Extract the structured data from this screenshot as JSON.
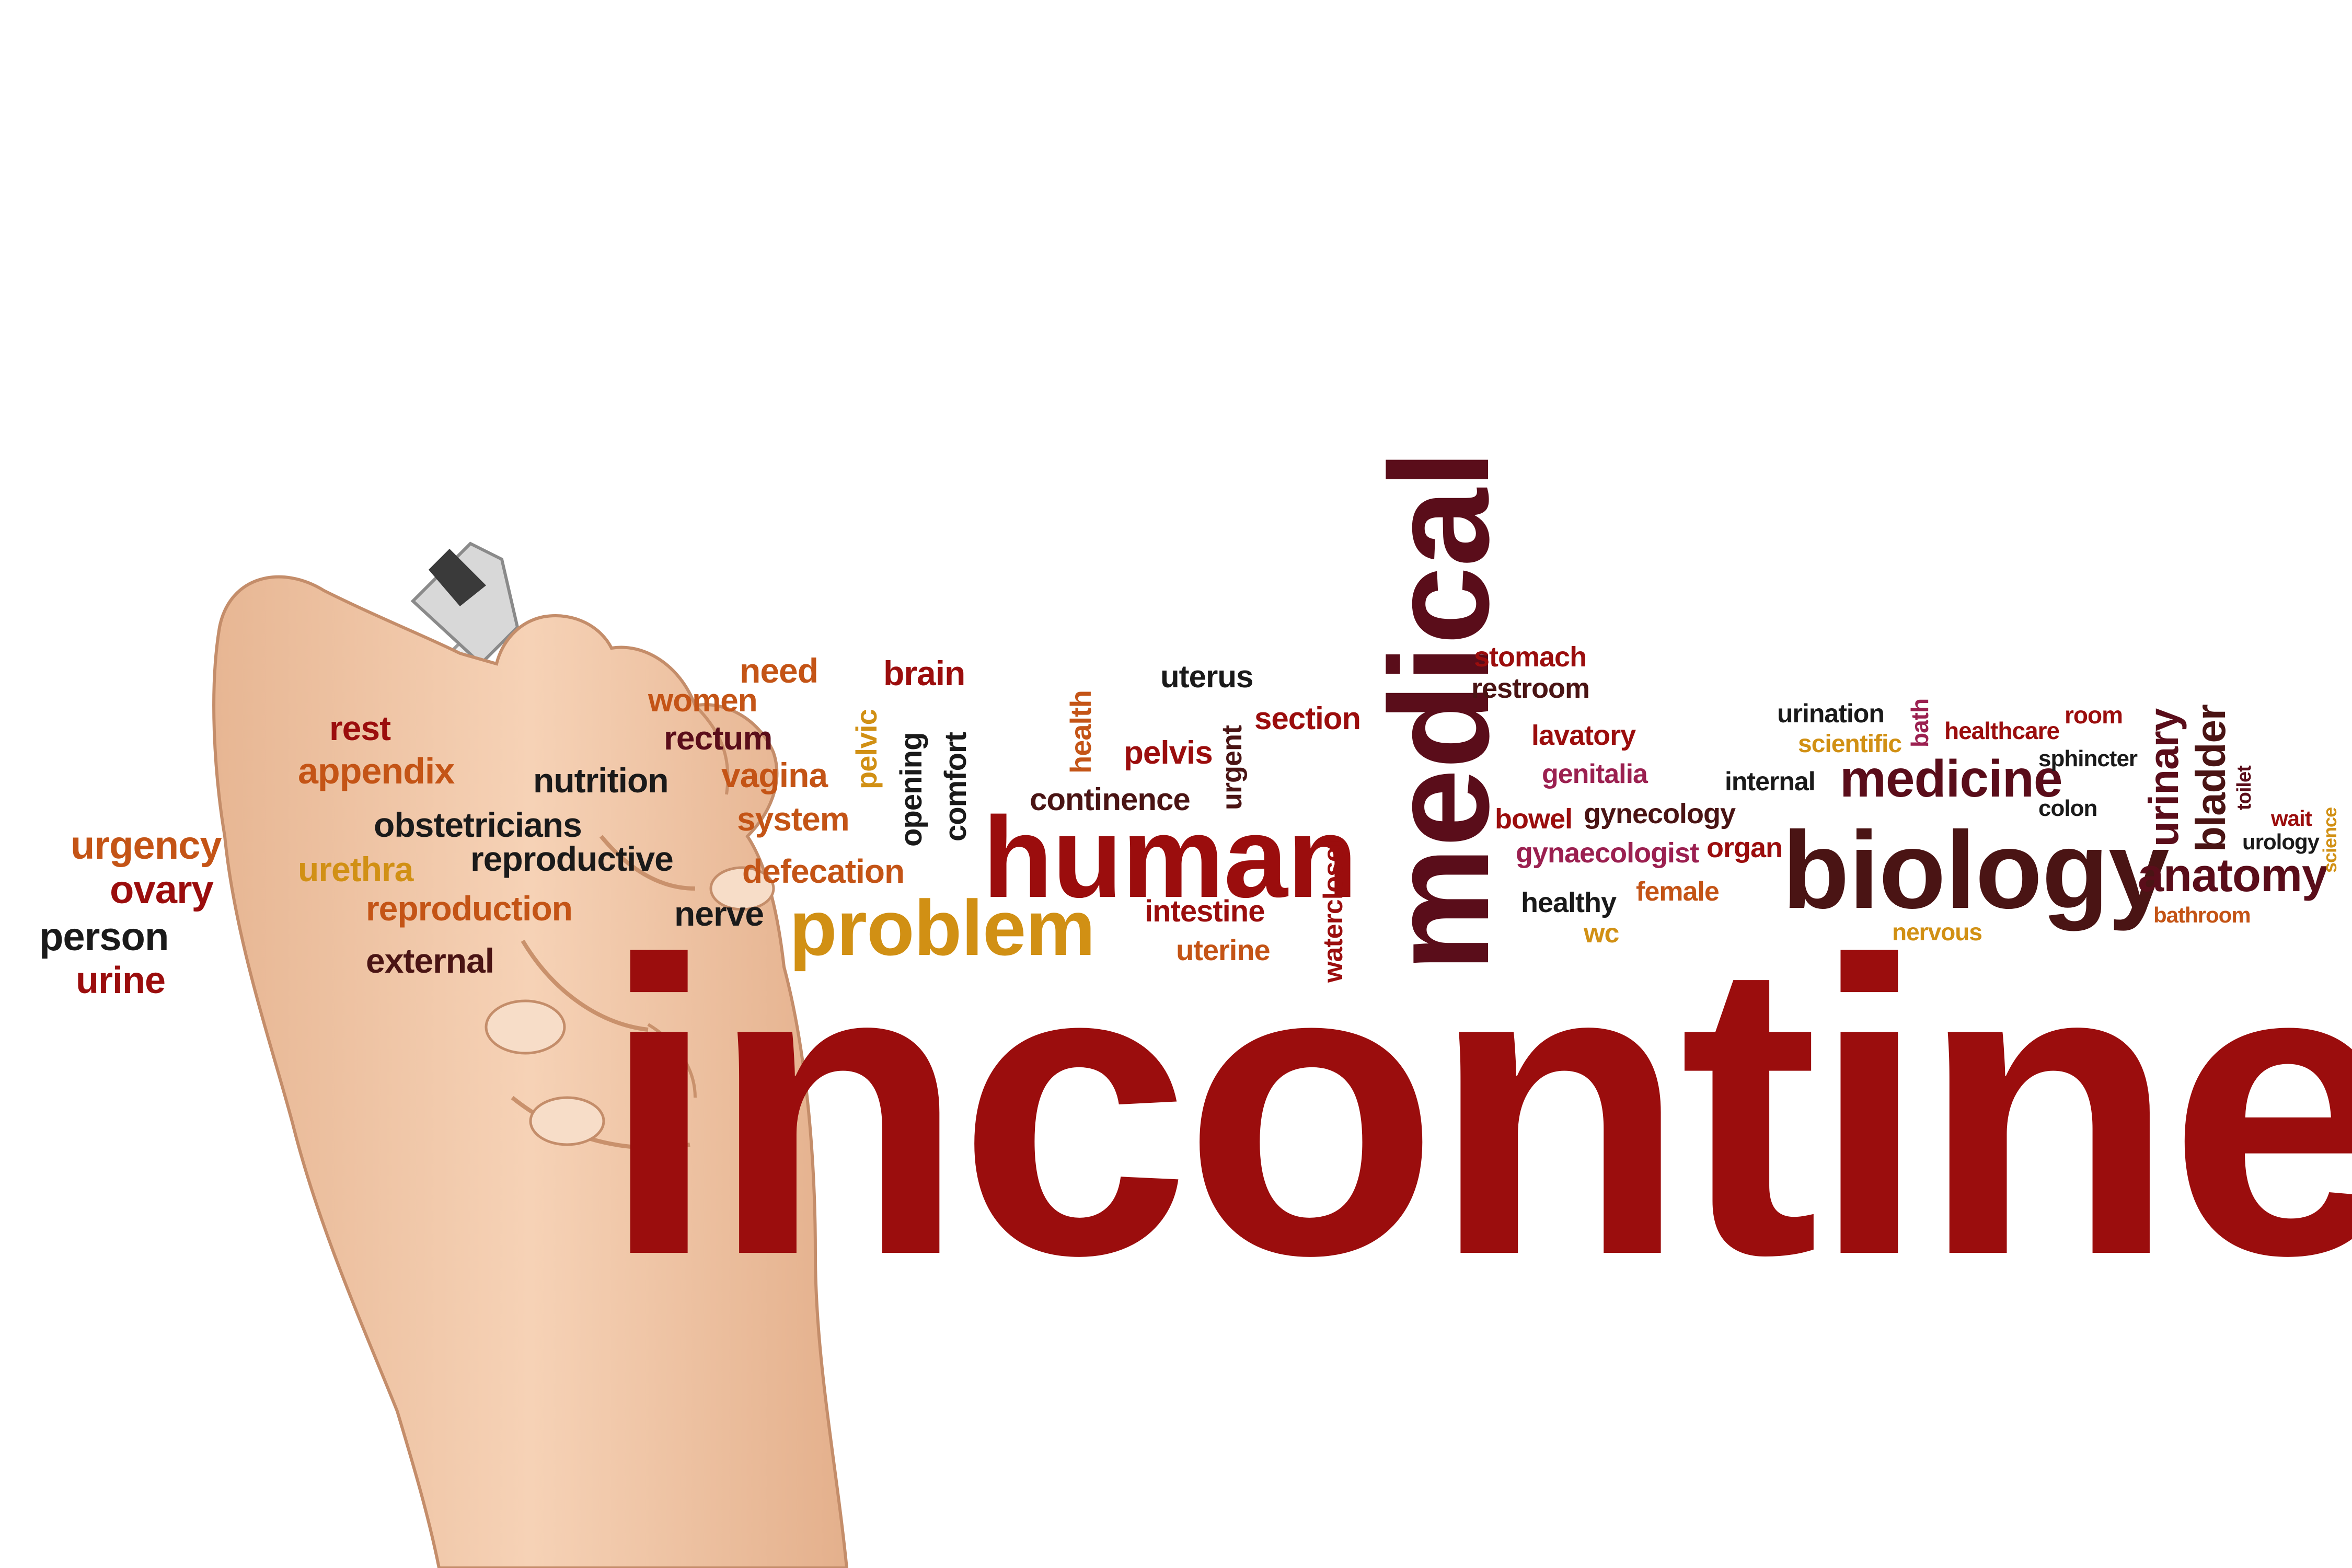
{
  "palette": {
    "dark_red": "#9b0d0d",
    "maroon": "#5a0d1a",
    "brown": "#4a1414",
    "orange": "#c45416",
    "amber": "#d19014",
    "black": "#1a1a1a",
    "skin": "#f1c7a6"
  },
  "hero_word": "incontinence",
  "words": {
    "medical": "medical",
    "human": "human",
    "biology": "biology",
    "problem": "problem",
    "medicine": "medicine",
    "anatomy": "anatomy",
    "urinary": "urinary",
    "bladder": "bladder",
    "need": "need",
    "brain": "brain",
    "women": "women",
    "rectum": "rectum",
    "rest": "rest",
    "appendix": "appendix",
    "nutrition": "nutrition",
    "vagina": "vagina",
    "pelvic": "pelvic",
    "opening": "opening",
    "comfort": "comfort",
    "health": "health",
    "uterus": "uterus",
    "pelvis": "pelvis",
    "urgent": "urgent",
    "section": "section",
    "continence": "continence",
    "obstetricians": "obstetricians",
    "system": "system",
    "urgency": "urgency",
    "ovary": "ovary",
    "urethra": "urethra",
    "reproductive": "reproductive",
    "defecation": "defecation",
    "person": "person",
    "reproduction": "reproduction",
    "nerve": "nerve",
    "urine": "urine",
    "external": "external",
    "intestine": "intestine",
    "uterine": "uterine",
    "watercloset": "watercloset",
    "stomach": "stomach",
    "restroom": "restroom",
    "lavatory": "lavatory",
    "genitalia": "genitalia",
    "bowel": "bowel",
    "gynecology": "gynecology",
    "gynaecologist": "gynaecologist",
    "organ": "organ",
    "healthy": "healthy",
    "female": "female",
    "wc": "wc",
    "urination": "urination",
    "scientific": "scientific",
    "bath": "bath",
    "healthcare": "healthcare",
    "room": "room",
    "internal": "internal",
    "sphincter": "sphincter",
    "colon": "colon",
    "toilet": "toilet",
    "wait": "wait",
    "urology": "urology",
    "science": "science",
    "nervous": "nervous",
    "bathroom": "bathroom"
  }
}
